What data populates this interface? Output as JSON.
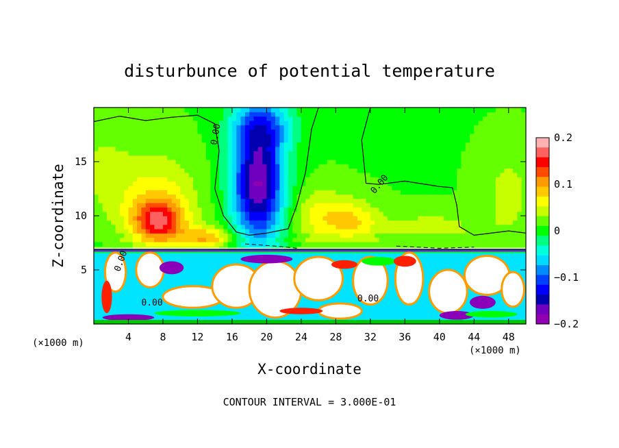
{
  "chart_data": {
    "type": "heatmap",
    "title": "disturbunce of potential temperature",
    "xlabel": "X-coordinate",
    "ylabel": "Z-coordinate",
    "x_unit": "(×1000 m)",
    "xlim": [
      0,
      50
    ],
    "ylim": [
      0,
      20
    ],
    "x_ticks": [
      4,
      8,
      12,
      16,
      20,
      24,
      28,
      32,
      36,
      40,
      44,
      48
    ],
    "y_ticks": [
      5,
      10,
      15
    ],
    "colorbar": {
      "range": [
        -0.2,
        0.2
      ],
      "tick_values": [
        0.2,
        0.1,
        0,
        -0.1,
        -0.2
      ],
      "tick_labels": [
        "0.2",
        "0.1",
        "0",
        "−0.1",
        "−0.2"
      ],
      "colors": [
        "#ffb0b0",
        "#ff6060",
        "#ff0000",
        "#ff4a00",
        "#ff9a00",
        "#ffc800",
        "#ffff00",
        "#c8ff00",
        "#64ff00",
        "#00ff00",
        "#00ff80",
        "#00ffdc",
        "#00dcff",
        "#008cff",
        "#0040ff",
        "#0000ff",
        "#0000b0",
        "#7000c0",
        "#9000b0"
      ]
    },
    "contour_labels": [
      {
        "text": "0.00",
        "x": 14.2,
        "z": 16.5,
        "rotate": -80
      },
      {
        "text": "0.00",
        "x": 3.0,
        "z": 4.8,
        "rotate": -70
      },
      {
        "text": "0.00",
        "x": 5.5,
        "z": 1.7,
        "rotate": 0
      },
      {
        "text": "0.00",
        "x": 30.5,
        "z": 2.1,
        "rotate": 0
      },
      {
        "text": "0.00",
        "x": 32.5,
        "z": 12.0,
        "rotate": -50
      }
    ],
    "fields": {
      "base": 0.01,
      "blobs": [
        {
          "x": 7.5,
          "z": 9.5,
          "sx": 3.0,
          "sz": 2.0,
          "a": 0.13
        },
        {
          "x": 7.0,
          "z": 12.0,
          "sx": 5.0,
          "sz": 4.0,
          "a": 0.05
        },
        {
          "x": 19.0,
          "z": 13.0,
          "sx": 3.0,
          "sz": 5.5,
          "a": -0.19
        },
        {
          "x": 19.5,
          "z": 18.5,
          "sx": 3.5,
          "sz": 2.5,
          "a": -0.08
        },
        {
          "x": 26.0,
          "z": 10.0,
          "sx": 3.0,
          "sz": 2.5,
          "a": 0.05
        },
        {
          "x": 30.0,
          "z": 9.5,
          "sx": 3.0,
          "sz": 2.0,
          "a": 0.06
        },
        {
          "x": 13.0,
          "z": 8.0,
          "sx": 3.0,
          "sz": 1.0,
          "a": 0.08
        },
        {
          "x": 39.0,
          "z": 9.0,
          "sx": 6.0,
          "sz": 1.5,
          "a": 0.03
        },
        {
          "x": 48.0,
          "z": 12.0,
          "sx": 3.0,
          "sz": 4.0,
          "a": 0.03
        },
        {
          "x": 1.0,
          "z": 15.0,
          "sx": 3.0,
          "sz": 5.0,
          "a": 0.02
        }
      ],
      "lower_layer_top": 6.8
    }
  },
  "footer": {
    "contour_interval_text": "CONTOUR INTERVAL = 3.000E-01"
  }
}
